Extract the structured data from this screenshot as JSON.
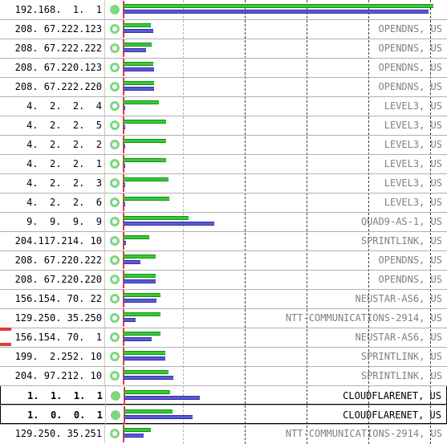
{
  "scale_max_ms": 265,
  "colors": {
    "cached": "#33cc33",
    "uncached": "#5a5ad8",
    "status": "#7ed87e",
    "baseline": "#e03c3c"
  },
  "legend_icons": {
    "status_filled": "status-dot-filled-icon",
    "status_ring": "status-dot-ring-icon"
  },
  "resolvers": [
    {
      "ip": "192.168.  1.  1",
      "owner": "",
      "status": "filled",
      "selected": false,
      "cached_ms": 262,
      "uncached_ms": 258
    },
    {
      "ip": "208. 67.222.123",
      "owner": "OPENDNS, US",
      "status": "ring",
      "selected": false,
      "cached_ms": 23,
      "uncached_ms": 25
    },
    {
      "ip": "208. 67.222.222",
      "owner": "OPENDNS, US",
      "status": "ring",
      "selected": false,
      "cached_ms": 24,
      "uncached_ms": 19
    },
    {
      "ip": "208. 67.220.123",
      "owner": "OPENDNS, US",
      "status": "ring",
      "selected": false,
      "cached_ms": 25,
      "uncached_ms": 26
    },
    {
      "ip": "208. 67.222.220",
      "owner": "OPENDNS, US",
      "status": "ring",
      "selected": false,
      "cached_ms": 26,
      "uncached_ms": 26
    },
    {
      "ip": "  4.  2.  2.  4",
      "owner": "LEVEL3, US",
      "status": "ring",
      "selected": false,
      "cached_ms": 30,
      "uncached_ms": 1
    },
    {
      "ip": "  4.  2.  2.  5",
      "owner": "LEVEL3, US",
      "status": "ring",
      "selected": false,
      "cached_ms": 36,
      "uncached_ms": 1
    },
    {
      "ip": "  4.  2.  2.  2",
      "owner": "LEVEL3, US",
      "status": "ring",
      "selected": false,
      "cached_ms": 36,
      "uncached_ms": 1
    },
    {
      "ip": "  4.  2.  2.  1",
      "owner": "LEVEL3, US",
      "status": "ring",
      "selected": false,
      "cached_ms": 36,
      "uncached_ms": 1
    },
    {
      "ip": "  4.  2.  2.  3",
      "owner": "LEVEL3, US",
      "status": "ring",
      "selected": false,
      "cached_ms": 38,
      "uncached_ms": 1
    },
    {
      "ip": "  4.  2.  2.  6",
      "owner": "LEVEL3, US",
      "status": "ring",
      "selected": false,
      "cached_ms": 39,
      "uncached_ms": 1
    },
    {
      "ip": "  9.  9.  9.  9",
      "owner": "QUAD9-AS-1, US",
      "status": "ring",
      "selected": false,
      "cached_ms": 55,
      "uncached_ms": 77
    },
    {
      "ip": "204.117.214. 10",
      "owner": "SPRINTLINK, US",
      "status": "ring",
      "selected": false,
      "cached_ms": 22,
      "uncached_ms": 2
    },
    {
      "ip": "208. 67.220.222",
      "owner": "OPENDNS, US",
      "status": "ring",
      "selected": false,
      "cached_ms": 27,
      "uncached_ms": 14
    },
    {
      "ip": "208. 67.220.220",
      "owner": "OPENDNS, US",
      "status": "ring",
      "selected": false,
      "cached_ms": 27,
      "uncached_ms": 27
    },
    {
      "ip": "156.154. 70. 22",
      "owner": "NEUSTAR-AS6, US",
      "status": "ring",
      "selected": false,
      "cached_ms": 31,
      "uncached_ms": 28
    },
    {
      "ip": "129.250. 35.250",
      "owner": "NTT-COMMUNICATIONS-2914, US",
      "status": "ring",
      "selected": false,
      "cached_ms": 31,
      "uncached_ms": 10
    },
    {
      "ip": "156.154. 70.  1",
      "owner": "NEUSTAR-AS6, US",
      "status": "ring",
      "selected": false,
      "cached_ms": 31,
      "uncached_ms": 24
    },
    {
      "ip": "199.  2.252. 10",
      "owner": "SPRINTLINK, US",
      "status": "ring",
      "selected": false,
      "cached_ms": 35,
      "uncached_ms": 35
    },
    {
      "ip": "204. 97.212. 10",
      "owner": "SPRINTLINK, US",
      "status": "ring",
      "selected": false,
      "cached_ms": 38,
      "uncached_ms": 42
    },
    {
      "ip": "  1.  1.  1.  1",
      "owner": "CLOUDFLARENET, US",
      "status": "filled",
      "selected": true,
      "cached_ms": 39,
      "uncached_ms": 64
    },
    {
      "ip": "  1.  0.  0.  1",
      "owner": "CLOUDFLARENET, US",
      "status": "filled",
      "selected": true,
      "cached_ms": 41,
      "uncached_ms": 58
    },
    {
      "ip": "129.250. 35.251",
      "owner": "NTT-COMMUNICATIONS-2914, US",
      "status": "ring",
      "selected": false,
      "cached_ms": 23,
      "uncached_ms": 17
    }
  ]
}
